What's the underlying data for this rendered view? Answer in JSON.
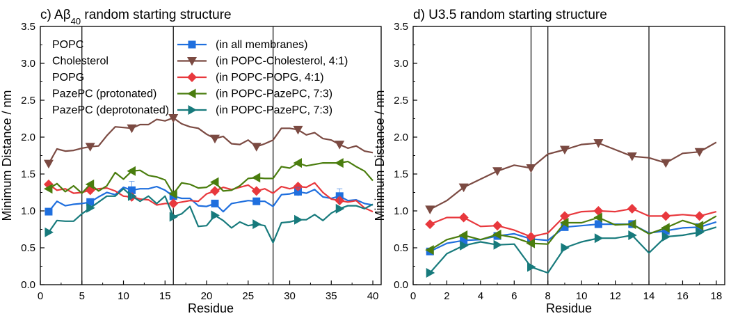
{
  "colors": {
    "membranes_all": "#1f6fde",
    "cholesterol": "#7b4a42",
    "popg": "#e8383d",
    "pazepc_protonated": "#4a7d0e",
    "pazepc_deprotonated": "#177a7c",
    "vline": "#000000"
  },
  "chart_data": [
    {
      "type": "line",
      "title_pre": "c) Aβ",
      "title_sub": "40",
      "title_post": " random starting structure",
      "xlabel": "Residue",
      "ylabel": "Minimum Distance / nm",
      "xlim": [
        0,
        41
      ],
      "ylim": [
        0.0,
        3.5
      ],
      "x_ticks": [
        0,
        5,
        10,
        15,
        20,
        25,
        30,
        35,
        40
      ],
      "y_ticks": [
        0.0,
        0.5,
        1.0,
        1.5,
        2.0,
        2.5,
        3.0,
        3.5
      ],
      "vlines": [
        5,
        16,
        28
      ],
      "grid": false,
      "legend_position": "top-left",
      "x": [
        1,
        2,
        3,
        4,
        5,
        6,
        7,
        8,
        9,
        10,
        11,
        12,
        13,
        14,
        15,
        16,
        17,
        18,
        19,
        20,
        21,
        22,
        23,
        24,
        25,
        26,
        27,
        28,
        29,
        30,
        31,
        32,
        33,
        34,
        35,
        36,
        37,
        38,
        39,
        40
      ],
      "series": [
        {
          "name": "POPC",
          "legend_label": "(in all membranes)",
          "color_key": "membranes_all",
          "marker": "square",
          "marker_every": 5,
          "marker_offset": 0,
          "values": [
            0.99,
            1.13,
            1.07,
            1.09,
            1.1,
            1.12,
            1.19,
            1.25,
            1.22,
            1.32,
            1.28,
            1.3,
            1.3,
            1.33,
            1.28,
            1.2,
            1.17,
            1.17,
            1.07,
            1.06,
            1.1,
            0.99,
            1.1,
            1.12,
            1.14,
            1.13,
            1.13,
            1.06,
            1.22,
            1.23,
            1.26,
            1.24,
            1.29,
            1.19,
            1.17,
            1.2,
            1.14,
            1.15,
            1.1,
            1.08
          ]
        },
        {
          "name": "Cholesterol",
          "legend_label": "(in POPC-Cholesterol, 4:1)",
          "color_key": "cholesterol",
          "marker": "triangle-down",
          "marker_every": 5,
          "marker_offset": 0,
          "values": [
            1.64,
            1.84,
            1.81,
            1.82,
            1.85,
            1.87,
            1.88,
            2.02,
            2.14,
            2.13,
            2.12,
            2.17,
            2.17,
            2.24,
            2.22,
            2.26,
            2.18,
            2.14,
            2.12,
            2.04,
            1.98,
            2.01,
            1.91,
            1.9,
            1.96,
            1.87,
            1.91,
            1.96,
            2.12,
            2.12,
            2.1,
            2.03,
            2.06,
            1.98,
            1.96,
            1.9,
            1.85,
            1.88,
            1.81,
            1.79
          ]
        },
        {
          "name": "POPG",
          "legend_label": "(in POPC-POPG, 4:1)",
          "color_key": "popg",
          "marker": "diamond",
          "marker_every": 5,
          "marker_offset": 0,
          "values": [
            1.36,
            1.28,
            1.3,
            1.24,
            1.25,
            1.28,
            1.3,
            1.31,
            1.27,
            1.2,
            1.19,
            1.16,
            1.15,
            1.08,
            1.1,
            1.1,
            1.12,
            1.14,
            1.13,
            1.23,
            1.27,
            1.32,
            1.29,
            1.32,
            1.35,
            1.27,
            1.3,
            1.24,
            1.33,
            1.3,
            1.33,
            1.32,
            1.38,
            1.25,
            1.16,
            1.14,
            1.12,
            1.14,
            1.04,
            0.99
          ]
        },
        {
          "name": "PazePC (protonated)",
          "legend_label": "(in POPC-PazePC, 7:3)",
          "color_key": "pazepc_protonated",
          "marker": "triangle-left",
          "marker_every": 5,
          "marker_offset": 0,
          "values": [
            1.3,
            1.37,
            1.26,
            1.34,
            1.24,
            1.36,
            1.27,
            1.34,
            1.52,
            1.43,
            1.54,
            1.55,
            1.48,
            1.46,
            1.42,
            1.23,
            1.38,
            1.36,
            1.31,
            1.32,
            1.39,
            1.27,
            1.28,
            1.34,
            1.44,
            1.45,
            1.44,
            1.44,
            1.6,
            1.58,
            1.65,
            1.61,
            1.63,
            1.65,
            1.65,
            1.65,
            1.67,
            1.6,
            1.54,
            1.41
          ]
        },
        {
          "name": "PazePC (deprotonated)",
          "legend_label": "(in POPC-PazePC, 7:3)",
          "color_key": "pazepc_deprotonated",
          "marker": "triangle-right",
          "marker_every": 5,
          "marker_offset": 0,
          "values": [
            0.71,
            0.87,
            0.86,
            0.86,
            0.96,
            1.04,
            1.12,
            1.2,
            1.2,
            1.3,
            1.2,
            1.13,
            1.2,
            1.1,
            1.2,
            0.92,
            0.96,
            1.06,
            0.79,
            0.8,
            0.94,
            0.87,
            0.77,
            0.85,
            0.8,
            0.82,
            0.8,
            0.57,
            0.84,
            0.85,
            0.88,
            0.88,
            0.95,
            0.87,
            0.97,
            1.03,
            1.07,
            1.07,
            1.03,
            1.09
          ]
        }
      ],
      "error_bars": {
        "series": "POPC",
        "x": [
          11,
          31,
          36
        ],
        "err": [
          0.12,
          0.06,
          0.1
        ]
      }
    },
    {
      "type": "line",
      "title_pre": "d) U3.5 random starting structure",
      "title_sub": "",
      "title_post": "",
      "xlabel": "Residue",
      "ylabel": "Minimum Distance / nm",
      "xlim": [
        0,
        18.5
      ],
      "ylim": [
        0.0,
        3.5
      ],
      "x_ticks": [
        0,
        2,
        4,
        6,
        8,
        10,
        12,
        14,
        16,
        18
      ],
      "y_ticks": [
        0.0,
        0.5,
        1.0,
        1.5,
        2.0,
        2.5,
        3.0,
        3.5
      ],
      "vlines": [
        7,
        8,
        14
      ],
      "grid": false,
      "legend_position": "none",
      "x": [
        1,
        2,
        3,
        4,
        5,
        6,
        7,
        8,
        9,
        10,
        11,
        12,
        13,
        14,
        15,
        16,
        17,
        18
      ],
      "series": [
        {
          "name": "POPC",
          "color_key": "membranes_all",
          "marker": "square",
          "marker_every": 2,
          "marker_offset": 0,
          "values": [
            0.45,
            0.56,
            0.6,
            0.61,
            0.66,
            0.69,
            0.62,
            0.6,
            0.78,
            0.8,
            0.82,
            0.82,
            0.82,
            0.7,
            0.73,
            0.77,
            0.78,
            0.85
          ]
        },
        {
          "name": "Cholesterol",
          "color_key": "cholesterol",
          "marker": "triangle-down",
          "marker_every": 2,
          "marker_offset": 0,
          "values": [
            1.02,
            1.14,
            1.32,
            1.43,
            1.54,
            1.62,
            1.58,
            1.77,
            1.83,
            1.9,
            1.92,
            1.83,
            1.74,
            1.72,
            1.65,
            1.78,
            1.8,
            1.93
          ]
        },
        {
          "name": "POPG",
          "color_key": "popg",
          "marker": "diamond",
          "marker_every": 2,
          "marker_offset": 0,
          "values": [
            0.82,
            0.91,
            0.91,
            0.79,
            0.8,
            0.74,
            0.65,
            0.7,
            0.93,
            0.99,
            1.0,
            0.99,
            1.03,
            0.93,
            0.93,
            0.95,
            0.93,
            0.99
          ]
        },
        {
          "name": "PazePC (protonated)",
          "color_key": "pazepc_protonated",
          "marker": "triangle-left",
          "marker_every": 2,
          "marker_offset": 0,
          "values": [
            0.47,
            0.61,
            0.67,
            0.61,
            0.68,
            0.64,
            0.56,
            0.55,
            0.84,
            0.84,
            0.91,
            0.81,
            0.82,
            0.69,
            0.77,
            0.87,
            0.8,
            0.93
          ]
        },
        {
          "name": "PazePC (deprotonated)",
          "color_key": "pazepc_deprotonated",
          "marker": "triangle-right",
          "marker_every": 2,
          "marker_offset": 0,
          "values": [
            0.16,
            0.42,
            0.53,
            0.58,
            0.54,
            0.55,
            0.24,
            0.16,
            0.5,
            0.58,
            0.63,
            0.63,
            0.67,
            0.43,
            0.65,
            0.67,
            0.71,
            0.78
          ]
        }
      ],
      "error_bars": {
        "series": "POPC",
        "x": [
          11,
          13
        ],
        "err": [
          0.05,
          0.05
        ]
      }
    }
  ]
}
